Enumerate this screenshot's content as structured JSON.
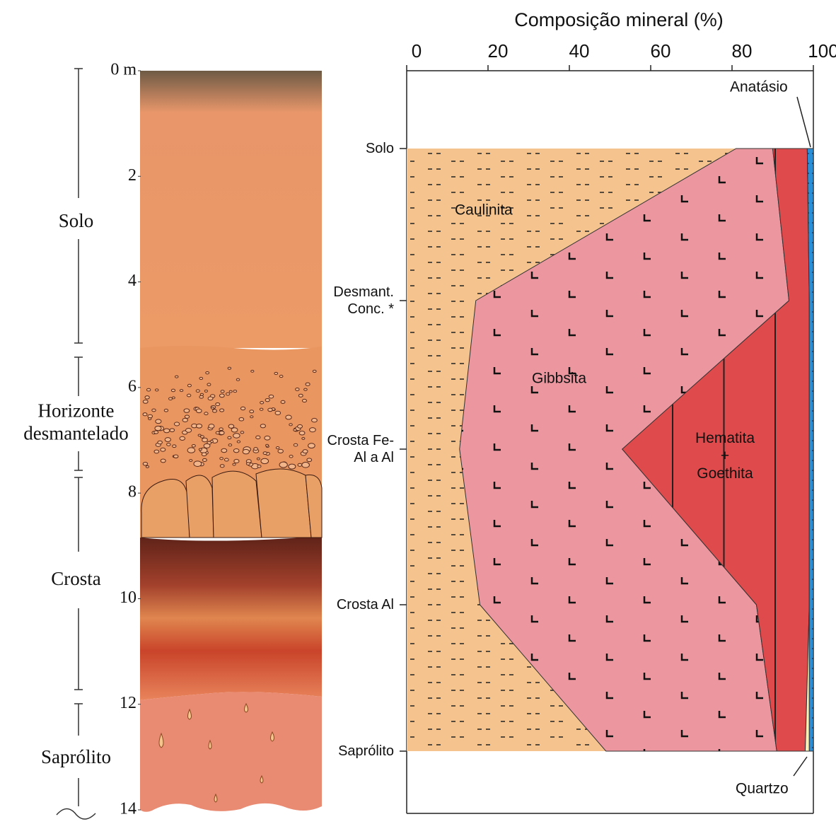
{
  "chart_data": [
    {
      "type": "profile",
      "ylim": [
        0,
        14
      ],
      "yticks": [
        {
          "value": 0,
          "label": "0 m"
        },
        2,
        4,
        6,
        8,
        10,
        12,
        14
      ],
      "horizons": [
        "Solo",
        "Horizonte desmantelado",
        "Crosta",
        "Saprólito"
      ]
    },
    {
      "type": "stacked-area",
      "title": "Composição mineral (%)",
      "categories": [
        "Solo",
        "Desmant. Conc. *",
        "Crosta Fe-Al a Al",
        "Crosta Al",
        "Saprólito"
      ],
      "xlim": [
        0,
        100
      ],
      "xticks": [
        0,
        20,
        40,
        60,
        80,
        100
      ],
      "series": [
        {
          "name": "Caulinita",
          "color": "#f5c48e",
          "values": [
            81,
            17,
            13,
            18,
            49
          ]
        },
        {
          "name": "Gibbsita",
          "color": "#ec97a0",
          "values": [
            9,
            77,
            40,
            68,
            42
          ]
        },
        {
          "name": "Hematita + Goethita",
          "color": "#df4b4c",
          "values": [
            8.5,
            5,
            46,
            13,
            7
          ]
        },
        {
          "name": "Quartzo",
          "color": "#fdf1b5",
          "values": [
            0,
            0,
            0,
            0,
            1
          ]
        },
        {
          "name": "Anatásio",
          "color": "#2a8fd6",
          "values": [
            1.5,
            1,
            1,
            1,
            1
          ]
        }
      ]
    }
  ]
}
